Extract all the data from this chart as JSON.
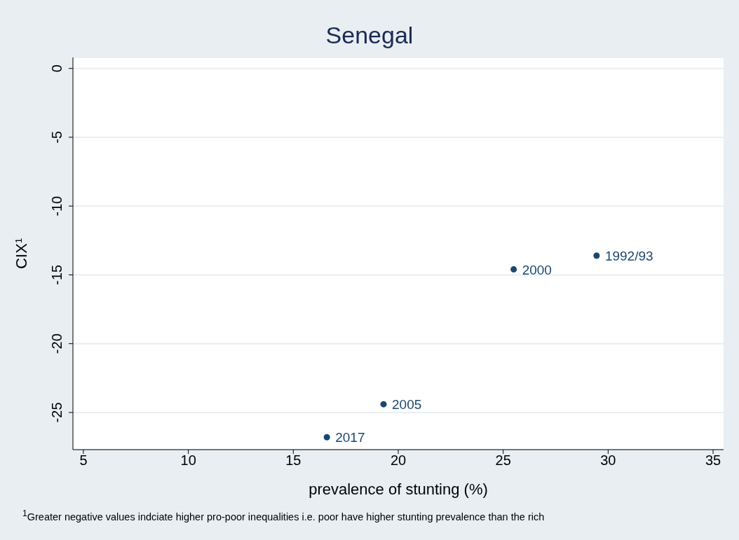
{
  "chart_data": {
    "type": "scatter",
    "title": "Senegal",
    "xlabel": "prevalence of stunting (%)",
    "ylabel": "CIX$^{1}$",
    "x": [
      29.45,
      25.5,
      19.3,
      16.6
    ],
    "series": [
      {
        "color": "#1a476f",
        "values": [
          -13.6,
          -14.6,
          -24.4,
          -26.8
        ]
      }
    ],
    "xlim": [
      4.5,
      35.5
    ],
    "xticks": [
      5,
      10,
      15,
      20,
      25,
      30,
      35
    ],
    "ylim": [
      -27.7,
      0.8
    ],
    "yticks": [
      0,
      -5,
      -10,
      -15,
      -20,
      -25
    ],
    "grid": "y",
    "marker": "circle",
    "legend": false,
    "annotations": [
      {
        "text": "1992/93",
        "x": 29.45,
        "y": -13.6
      },
      {
        "text": "2000",
        "x": 25.5,
        "y": -14.6
      },
      {
        "text": "2005",
        "x": 19.3,
        "y": -24.4
      },
      {
        "text": "2017",
        "x": 16.6,
        "y": -26.8
      },
      "$^{1}$Greater negative values indciate higher pro-poor inequalities i.e. poor have higher stunting prevalence than the rich"
    ]
  }
}
